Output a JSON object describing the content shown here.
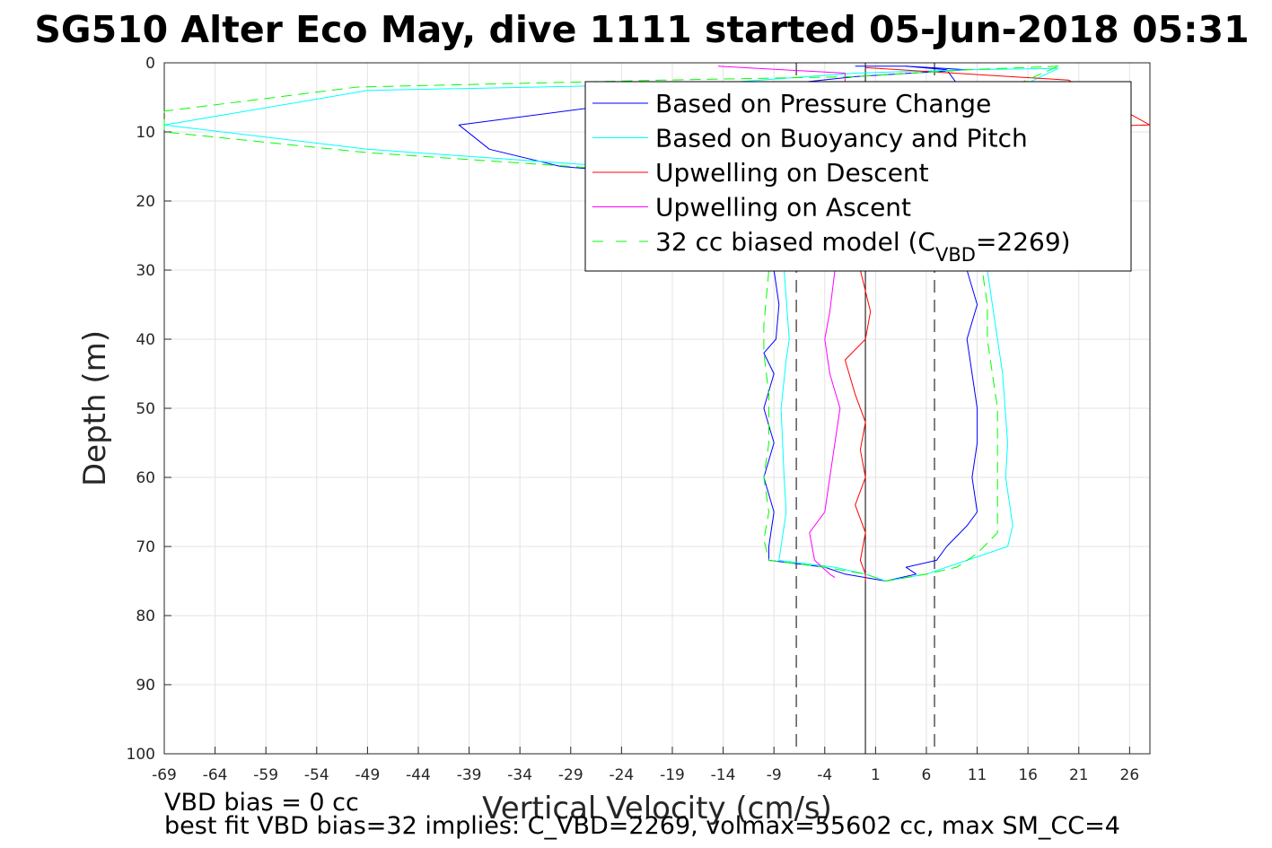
{
  "chart_data": {
    "type": "line",
    "title": "SG510 Alter Eco May, dive 1111 started 05-Jun-2018 05:31",
    "xlabel": "Vertical Velocity (cm/s)",
    "ylabel": "Depth (m)",
    "xlim": [
      -69,
      28
    ],
    "ylim": [
      0,
      100
    ],
    "y_reversed": true,
    "grid": true,
    "x_ticks": [
      "-69",
      "-64",
      "-59",
      "-54",
      "-49",
      "-44",
      "-39",
      "-34",
      "-29",
      "-24",
      "-19",
      "-14",
      "-9",
      "-4",
      "1",
      "6",
      "11",
      "16",
      "21",
      "26"
    ],
    "y_ticks": [
      "0",
      "10",
      "20",
      "30",
      "40",
      "50",
      "60",
      "70",
      "80",
      "90",
      "100"
    ],
    "legend_position": "top-right",
    "series": [
      {
        "name": "Based on Pressure Change",
        "color": "#0000ff",
        "dash": "solid",
        "points": [
          [
            -1,
            0.5
          ],
          [
            4,
            0.5
          ],
          [
            10,
            1
          ],
          [
            -1,
            2
          ],
          [
            -14,
            4
          ],
          [
            -40,
            9
          ],
          [
            -37,
            12.5
          ],
          [
            -30,
            15
          ],
          [
            -13,
            17
          ],
          [
            -9,
            20
          ],
          [
            -9,
            25
          ],
          [
            -9,
            30
          ],
          [
            -8.5,
            35
          ],
          [
            -8.8,
            40
          ],
          [
            -10,
            42
          ],
          [
            -9,
            45
          ],
          [
            -10,
            50
          ],
          [
            -9,
            55
          ],
          [
            -10,
            60
          ],
          [
            -9,
            65
          ],
          [
            -9.5,
            70
          ],
          [
            -9.5,
            72
          ],
          [
            -4,
            73
          ],
          [
            -2,
            74
          ],
          [
            2,
            75
          ],
          [
            5,
            74
          ],
          [
            4,
            73
          ],
          [
            7,
            72
          ],
          [
            8,
            70
          ],
          [
            10,
            67
          ],
          [
            11,
            65
          ],
          [
            10.5,
            60
          ],
          [
            11,
            55
          ],
          [
            11,
            50
          ],
          [
            10.5,
            45
          ],
          [
            10,
            40
          ],
          [
            11,
            35
          ],
          [
            10,
            30
          ],
          [
            11,
            25
          ],
          [
            10,
            20
          ],
          [
            10,
            15
          ],
          [
            10,
            5
          ],
          [
            8,
            1
          ],
          [
            4,
            0.5
          ]
        ]
      },
      {
        "name": "Based on Buoyancy and Pitch",
        "color": "#00ffff",
        "dash": "solid",
        "points": [
          [
            19,
            0.8
          ],
          [
            10,
            1
          ],
          [
            -1,
            1.5
          ],
          [
            -15,
            3
          ],
          [
            -49,
            4
          ],
          [
            -69,
            9
          ],
          [
            -49,
            12.5
          ],
          [
            -25,
            15
          ],
          [
            -10,
            18
          ],
          [
            -8.5,
            22
          ],
          [
            -8,
            30
          ],
          [
            -7.5,
            40
          ],
          [
            -7.8,
            43
          ],
          [
            -8.3,
            50
          ],
          [
            -8,
            60
          ],
          [
            -7.8,
            65
          ],
          [
            -8.5,
            72
          ],
          [
            -3,
            73
          ],
          [
            0,
            74
          ],
          [
            2,
            75
          ],
          [
            6,
            74
          ],
          [
            10,
            72
          ],
          [
            14,
            70
          ],
          [
            14.5,
            67
          ],
          [
            13.8,
            60
          ],
          [
            14,
            55
          ],
          [
            13.5,
            45
          ],
          [
            13,
            40
          ],
          [
            12.5,
            35
          ],
          [
            12,
            30
          ],
          [
            12,
            25
          ],
          [
            12,
            20
          ],
          [
            12,
            15
          ],
          [
            12,
            10
          ],
          [
            13,
            5
          ],
          [
            19,
            0.8
          ]
        ]
      },
      {
        "name": "Upwelling on Descent",
        "color": "#ff0000",
        "dash": "solid",
        "points": [
          [
            0,
            0.7
          ],
          [
            20,
            2.5
          ],
          [
            28,
            9
          ],
          [
            -0.5,
            10
          ],
          [
            -0.5,
            30
          ],
          [
            0.5,
            36
          ],
          [
            0,
            40
          ],
          [
            -2,
            43
          ],
          [
            -1,
            48
          ],
          [
            0,
            52
          ],
          [
            -0.5,
            56
          ],
          [
            0,
            60
          ],
          [
            -1,
            64
          ],
          [
            0,
            68
          ],
          [
            -0.5,
            72
          ],
          [
            0,
            74
          ],
          [
            0,
            75
          ]
        ]
      },
      {
        "name": "Upwelling on Ascent",
        "color": "#ff00ff",
        "dash": "solid",
        "points": [
          [
            -14.5,
            0.5
          ],
          [
            -2,
            1.5
          ],
          [
            -2,
            5
          ],
          [
            -2,
            10
          ],
          [
            -2.5,
            20
          ],
          [
            -3,
            30
          ],
          [
            -3.5,
            36
          ],
          [
            -4,
            40
          ],
          [
            -3.5,
            45
          ],
          [
            -2.5,
            50
          ],
          [
            -3,
            55
          ],
          [
            -3.5,
            60
          ],
          [
            -4,
            65
          ],
          [
            -5.5,
            68
          ],
          [
            -5,
            72
          ],
          [
            -3.5,
            74
          ],
          [
            -3,
            74.5
          ]
        ]
      },
      {
        "name": "32 cc biased model (C_VBD=2269)",
        "color": "#00ff00",
        "dash": "dashed",
        "points": [
          [
            19,
            0.5
          ],
          [
            10,
            1
          ],
          [
            -1,
            2
          ],
          [
            -20,
            2.5
          ],
          [
            -50,
            3.5
          ],
          [
            -69,
            7
          ],
          [
            -69,
            10
          ],
          [
            -49,
            13
          ],
          [
            -24,
            15.5
          ],
          [
            -10,
            18
          ],
          [
            -9.5,
            22
          ],
          [
            -9.5,
            30
          ],
          [
            -10,
            38
          ],
          [
            -10,
            42
          ],
          [
            -9.5,
            48
          ],
          [
            -9.5,
            55
          ],
          [
            -10,
            60
          ],
          [
            -9.5,
            65
          ],
          [
            -10,
            69
          ],
          [
            -9.5,
            72
          ],
          [
            -4,
            73
          ],
          [
            0,
            74
          ],
          [
            2,
            75
          ],
          [
            6,
            74
          ],
          [
            9,
            73
          ],
          [
            11,
            71
          ],
          [
            13,
            68
          ],
          [
            13,
            60
          ],
          [
            13,
            50
          ],
          [
            12.5,
            45
          ],
          [
            12,
            40
          ],
          [
            12,
            35
          ],
          [
            11.5,
            30
          ],
          [
            11,
            25
          ],
          [
            11,
            18
          ],
          [
            11,
            10
          ],
          [
            12,
            5
          ],
          [
            19,
            0.5
          ]
        ]
      }
    ],
    "reference_lines": [
      {
        "x": -6.8,
        "dash": "dashed",
        "color": "#000000"
      },
      {
        "x": 0,
        "dash": "solid",
        "color": "#000000"
      },
      {
        "x": 6.8,
        "dash": "dashed",
        "color": "#000000"
      }
    ],
    "footer": [
      "VBD bias = 0 cc",
      "best fit VBD bias=32 implies: C_VBD=2269, volmax=55602 cc, max SM_CC=4"
    ]
  }
}
